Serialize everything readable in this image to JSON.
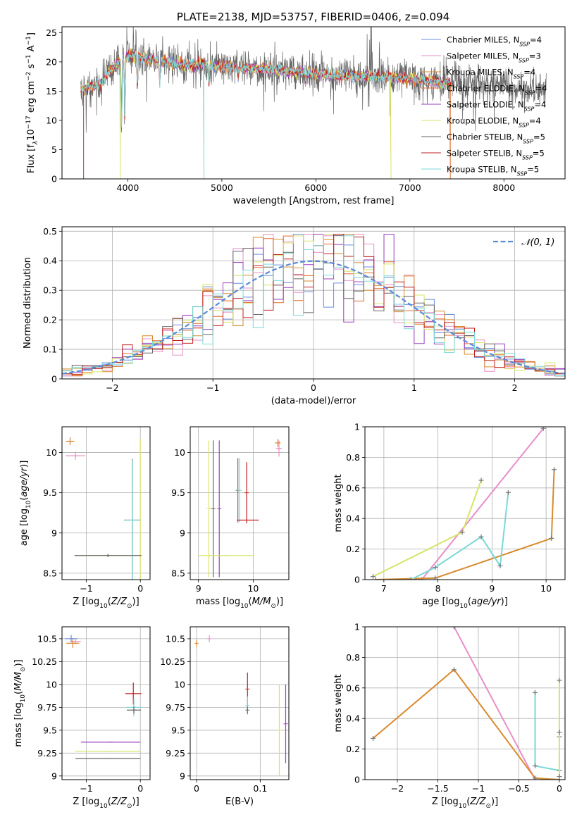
{
  "figure_title": "PLATE=2138, MJD=53757, FIBERID=0406, z=0.094",
  "colors": {
    "Chabrier MILES": "#6a8ee0",
    "Salpeter MILES": "#e88fc8",
    "Kroupa MILES": "#d88a2e",
    "Chabrier ELODIE": "#e06a2a",
    "Salpeter ELODIE": "#9a3fc0",
    "Kroupa ELODIE": "#d9e46a",
    "Chabrier STELIB": "#666666",
    "Salpeter STELIB": "#c21f1f",
    "Kroupa STELIB": "#7ad8d8",
    "normal": "#5a8ad8"
  },
  "chart_data": [
    {
      "id": "spectrum",
      "type": "line",
      "title": "PLATE=2138, MJD=53757, FIBERID=0406, z=0.094",
      "xlabel": "wavelength [Angstrom, rest frame]",
      "ylabel": "Flux [f",
      "xlim": [
        3300,
        8650
      ],
      "ylim": [
        0,
        26
      ],
      "xticks": [
        4000,
        5000,
        6000,
        7000,
        8000
      ],
      "yticks": [
        0,
        5,
        10,
        15,
        20,
        25
      ],
      "legend_position": "upper-right",
      "legend": [
        {
          "name": "Chabrier MILES",
          "nssp": "4"
        },
        {
          "name": "Salpeter MILES",
          "nssp": "3"
        },
        {
          "name": "Kroupa MILES",
          "nssp": "4"
        },
        {
          "name": "Chabrier ELODIE",
          "nssp": "4"
        },
        {
          "name": "Salpeter ELODIE",
          "nssp": "4"
        },
        {
          "name": "Kroupa ELODIE",
          "nssp": "4"
        },
        {
          "name": "Chabrier STELIB",
          "nssp": "5"
        },
        {
          "name": "Salpeter STELIB",
          "nssp": "5"
        },
        {
          "name": "Kroupa STELIB",
          "nssp": "5"
        }
      ],
      "continuum": {
        "x": [
          3500,
          3700,
          3850,
          3950,
          4050,
          4200,
          4400,
          4600,
          4800,
          5000,
          5200,
          5400,
          5600,
          5800,
          6000,
          6200,
          6400,
          6600,
          6800,
          7000,
          7200,
          7400,
          7600,
          7800,
          8000,
          8200,
          8450
        ],
        "y": [
          15.2,
          16.2,
          19.2,
          20.5,
          21.2,
          20.5,
          20.0,
          19.6,
          19.5,
          19.3,
          19.0,
          18.8,
          18.6,
          18.3,
          18.0,
          17.7,
          17.5,
          17.6,
          17.3,
          17.1,
          16.8,
          16.4,
          16.2,
          16.0,
          15.9,
          15.7,
          15.4
        ]
      },
      "absorption_lines": [
        {
          "x": 3934,
          "y": 8.0
        },
        {
          "x": 3968,
          "y": 10.5
        },
        {
          "x": 4102,
          "y": 15.5
        },
        {
          "x": 4340,
          "y": 16.0
        },
        {
          "x": 4861,
          "y": 16.5
        },
        {
          "x": 5175,
          "y": 17.2
        },
        {
          "x": 5893,
          "y": 16.5
        }
      ],
      "edge_drops": [
        {
          "x": 3530,
          "y": 0,
          "series": "Salpeter STELIB"
        },
        {
          "x": 3920,
          "y": 0,
          "series": "Kroupa ELODIE"
        },
        {
          "x": 4810,
          "y": 0,
          "series": "Kroupa STELIB"
        },
        {
          "x": 6800,
          "y": 0,
          "series": "Kroupa ELODIE"
        },
        {
          "x": 7430,
          "y": 0,
          "series": "Chabrier ELODIE"
        }
      ]
    },
    {
      "id": "residuals",
      "type": "step",
      "xlabel": "(data-model)/error",
      "ylabel": "Normed distribution",
      "xlim": [
        -2.5,
        2.5
      ],
      "ylim": [
        0,
        0.515
      ],
      "xticks": [
        -2,
        -1,
        0,
        1,
        2
      ],
      "yticks": [
        0.0,
        0.1,
        0.2,
        0.3,
        0.4,
        0.5
      ],
      "legend_position": "upper-right",
      "normal_label": "𝒩(0, 1)",
      "bin_width": 0.1
    },
    {
      "id": "age_vs_Z",
      "type": "errorbar",
      "xlabel": "Z [log",
      "ylabel": "age  [log",
      "xlim": [
        -1.45,
        0.18
      ],
      "ylim": [
        8.42,
        10.32
      ],
      "xticks": [
        -1,
        0
      ],
      "yticks": [
        8.5,
        9.0,
        9.5,
        10.0
      ],
      "points": [
        {
          "series": "Salpeter MILES",
          "x": -1.3,
          "y": 10.14,
          "xerr": 0.06,
          "yerr": 0.05
        },
        {
          "series": "Kroupa MILES",
          "x": -1.3,
          "y": 10.14,
          "xerr": 0.08,
          "yerr": 0.04
        },
        {
          "series": "Salpeter MILES",
          "x": -1.2,
          "y": 9.96,
          "xerr": 0.18,
          "yerr": 0.05
        },
        {
          "series": "Chabrier STELIB",
          "x": -0.15,
          "y": 9.16,
          "xerr": 0.15,
          "yerr": 0.76
        },
        {
          "series": "Kroupa STELIB",
          "x": -0.15,
          "y": 9.16,
          "xerr": 0.14,
          "yerr": 0.75
        },
        {
          "series": "Kroupa ELODIE",
          "x": 0.0,
          "y": 8.72,
          "xerr": 0.02,
          "yerr": 1.45
        },
        {
          "series": "Kroupa ELODIE",
          "x": -0.6,
          "y": 8.72,
          "xerr": 0.6,
          "yerr": 0.02
        },
        {
          "series": "Chabrier STELIB",
          "x": -0.6,
          "y": 8.72,
          "xerr": 0.62,
          "yerr": 0.02
        }
      ]
    },
    {
      "id": "age_vs_mass",
      "type": "errorbar",
      "xlabel": "mass [log",
      "ylabel": "",
      "xlim": [
        8.85,
        10.65
      ],
      "ylim": [
        8.42,
        10.32
      ],
      "xticks": [
        9,
        10
      ],
      "yticks": [
        8.5,
        9.0,
        9.5,
        10.0
      ],
      "points": [
        {
          "series": "Kroupa ELODIE",
          "x": 9.19,
          "y": 9.3,
          "xerr": 0.0,
          "yerr": 0.85
        },
        {
          "series": "Chabrier STELIB",
          "x": 9.27,
          "y": 9.3,
          "xerr": 0.0,
          "yerr": 0.85
        },
        {
          "series": "Salpeter ELODIE",
          "x": 9.38,
          "y": 9.3,
          "xerr": 0.0,
          "yerr": 0.85
        },
        {
          "series": "Chabrier STELIB",
          "x": 9.72,
          "y": 9.53,
          "xerr": 0.0,
          "yerr": 0.4
        },
        {
          "series": "Kroupa STELIB",
          "x": 9.75,
          "y": 9.53,
          "xerr": 0.0,
          "yerr": 0.4
        },
        {
          "series": "Salpeter STELIB",
          "x": 9.88,
          "y": 9.5,
          "xerr": 0.0,
          "yerr": 0.38
        },
        {
          "series": "Salpeter STELIB",
          "x": 9.9,
          "y": 9.16,
          "xerr": 0.2,
          "yerr": 0.0
        },
        {
          "series": "Kroupa ELODIE",
          "x": 9.5,
          "y": 8.72,
          "xerr": 0.5,
          "yerr": 0.0
        },
        {
          "series": "Salpeter MILES",
          "x": 10.47,
          "y": 10.05,
          "xerr": 0.05,
          "yerr": 0.1
        },
        {
          "series": "Kroupa MILES",
          "x": 10.45,
          "y": 10.12,
          "xerr": 0.05,
          "yerr": 0.05
        }
      ]
    },
    {
      "id": "weight_vs_age",
      "type": "line",
      "xlabel": "age  [log",
      "ylabel": "mass weight",
      "xlim": [
        6.65,
        10.35
      ],
      "ylim": [
        0,
        1.0
      ],
      "xticks": [
        7,
        8,
        9,
        10
      ],
      "yticks": [
        0.0,
        0.2,
        0.4,
        0.6,
        0.8,
        1.0
      ],
      "series": [
        {
          "name": "Salpeter MILES",
          "x": [
            7.7,
            9.95
          ],
          "y": [
            0.0,
            0.99
          ]
        },
        {
          "name": "Kroupa MILES",
          "x": [
            6.85,
            7.95,
            10.1,
            10.15
          ],
          "y": [
            0.0,
            0.01,
            0.27,
            0.72
          ]
        },
        {
          "name": "Kroupa STELIB",
          "x": [
            7.5,
            7.95,
            8.8,
            9.15,
            9.3
          ],
          "y": [
            0.0,
            0.08,
            0.28,
            0.09,
            0.57
          ]
        },
        {
          "name": "Kroupa ELODIE",
          "x": [
            6.8,
            8.45,
            8.8
          ],
          "y": [
            0.02,
            0.31,
            0.65
          ]
        }
      ]
    },
    {
      "id": "mass_vs_Z",
      "type": "errorbar",
      "xlabel": "Z [log",
      "ylabel": "mass [log",
      "xlim": [
        -1.45,
        0.18
      ],
      "ylim": [
        8.96,
        10.63
      ],
      "xticks": [
        -1,
        0
      ],
      "yticks": [
        9.0,
        9.25,
        9.5,
        9.75,
        10.0,
        10.25,
        10.5
      ],
      "points": [
        {
          "series": "Chabrier MILES",
          "x": -1.28,
          "y": 10.5,
          "xerr": 0.12,
          "yerr": 0.04
        },
        {
          "series": "Salpeter MILES",
          "x": -1.2,
          "y": 10.47,
          "xerr": 0.1,
          "yerr": 0.03
        },
        {
          "series": "Kroupa MILES",
          "x": -1.25,
          "y": 10.45,
          "xerr": 0.12,
          "yerr": 0.05
        },
        {
          "series": "Salpeter STELIB",
          "x": -0.13,
          "y": 9.9,
          "xerr": 0.15,
          "yerr": 0.12
        },
        {
          "series": "Kroupa STELIB",
          "x": -0.12,
          "y": 9.75,
          "xerr": 0.14,
          "yerr": 0.1
        },
        {
          "series": "Chabrier STELIB",
          "x": -0.12,
          "y": 9.72,
          "xerr": 0.13,
          "yerr": 0.04
        },
        {
          "series": "Salpeter ELODIE",
          "x": -0.55,
          "y": 9.37,
          "xerr": 0.55,
          "yerr": 0.0
        },
        {
          "series": "Kroupa ELODIE",
          "x": -0.6,
          "y": 9.27,
          "xerr": 0.6,
          "yerr": 0.0
        },
        {
          "series": "Chabrier STELIB",
          "x": -0.6,
          "y": 9.19,
          "xerr": 0.6,
          "yerr": 0.0
        }
      ]
    },
    {
      "id": "mass_vs_ebv",
      "type": "errorbar",
      "xlabel": "E(B-V)",
      "ylabel": "",
      "xlim": [
        -0.01,
        0.145
      ],
      "ylim": [
        8.96,
        10.63
      ],
      "xticks": [
        0.0,
        0.1
      ],
      "yticks": [
        9.0,
        9.25,
        9.5,
        9.75,
        10.0,
        10.25,
        10.5
      ],
      "points": [
        {
          "series": "Salpeter MILES",
          "x": 0.02,
          "y": 10.5,
          "xerr": 0.0,
          "yerr": 0.04
        },
        {
          "series": "Kroupa MILES",
          "x": 0.0,
          "y": 10.45,
          "xerr": 0.0,
          "yerr": 0.04
        },
        {
          "series": "Salpeter STELIB",
          "x": 0.08,
          "y": 9.95,
          "xerr": 0.0,
          "yerr": 0.18
        },
        {
          "series": "Kroupa STELIB",
          "x": 0.08,
          "y": 9.77,
          "xerr": 0.0,
          "yerr": 0.1
        },
        {
          "series": "Chabrier STELIB",
          "x": 0.08,
          "y": 9.72,
          "xerr": 0.0,
          "yerr": 0.04
        },
        {
          "series": "Kroupa ELODIE",
          "x": 0.13,
          "y": 9.5,
          "xerr": 0.0,
          "yerr": 0.5
        },
        {
          "series": "Salpeter ELODIE",
          "x": 0.14,
          "y": 9.57,
          "xerr": 0.0,
          "yerr": 0.43
        }
      ]
    },
    {
      "id": "weight_vs_Z",
      "type": "line",
      "xlabel": "Z [log",
      "ylabel": "mass weight",
      "xlim": [
        -2.4,
        0.07
      ],
      "ylim": [
        0,
        1.0
      ],
      "xticks": [
        -2.0,
        -1.5,
        -1.0,
        -0.5,
        0.0
      ],
      "yticks": [
        0.0,
        0.2,
        0.4,
        0.6,
        0.8,
        1.0
      ],
      "series": [
        {
          "name": "Salpeter MILES",
          "x": [
            -1.3,
            -0.3
          ],
          "y": [
            1.0,
            0.0
          ]
        },
        {
          "name": "Kroupa MILES",
          "x": [
            -2.3,
            -1.3,
            -0.3,
            0.0
          ],
          "y": [
            0.27,
            0.72,
            0.01,
            0.0
          ]
        },
        {
          "name": "Kroupa STELIB",
          "x": [
            -0.3,
            -0.3,
            0.0,
            0.0
          ],
          "y": [
            0.57,
            0.09,
            0.06,
            0.28
          ]
        },
        {
          "name": "Kroupa ELODIE",
          "x": [
            0.0,
            0.0,
            0.0
          ],
          "y": [
            0.65,
            0.31,
            0.02
          ]
        }
      ]
    }
  ]
}
